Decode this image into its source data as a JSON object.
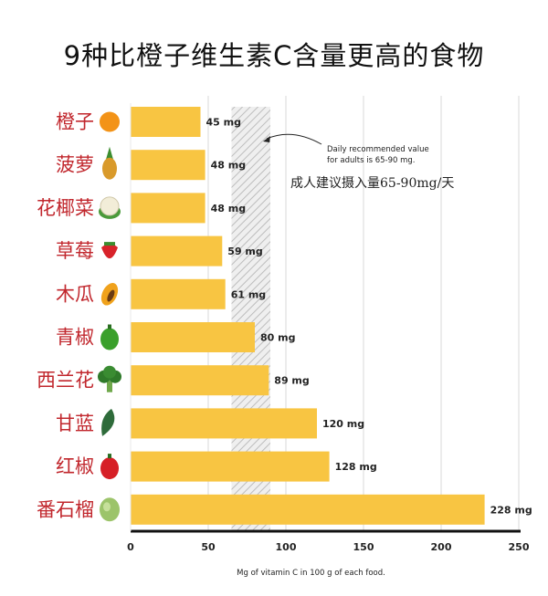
{
  "chart_data": {
    "type": "bar",
    "orientation": "horizontal",
    "title": "9种比橙子维生素C含量更高的食物",
    "xlabel": "Mg of vitamin C in 100 g of each food.",
    "categories": [
      "橙子",
      "菠萝",
      "花椰菜",
      "草莓",
      "木瓜",
      "青椒",
      "西兰花",
      "甘蓝",
      "红椒",
      "番石榴"
    ],
    "category_icons": [
      "orange-icon",
      "pineapple-icon",
      "cauliflower-icon",
      "strawberry-icon",
      "papaya-icon",
      "green-pepper-icon",
      "broccoli-icon",
      "kale-icon",
      "red-pepper-icon",
      "guava-icon"
    ],
    "values": [
      45,
      48,
      48,
      59,
      61,
      80,
      89,
      120,
      128,
      228
    ],
    "value_labels": [
      "45 mg",
      "48 mg",
      "48 mg",
      "59 mg",
      "61 mg",
      "80 mg",
      "89 mg",
      "120 mg",
      "128 mg",
      "228 mg"
    ],
    "xlim": [
      0,
      250
    ],
    "xticks": [
      0,
      50,
      100,
      150,
      200,
      250
    ],
    "recommended_range": [
      65,
      90
    ],
    "annotation": {
      "line1": "Daily recommended value",
      "line2": "for adults is 65-90 mg.",
      "cn": "成人建议摄入量65-90mg/天"
    },
    "grid": true,
    "legend": "none",
    "colors": {
      "bar": "#f8c542",
      "label": "#c1272d",
      "axis": "#111111",
      "grid": "#d9d9d9",
      "hatch": "#bdbdbd"
    }
  }
}
